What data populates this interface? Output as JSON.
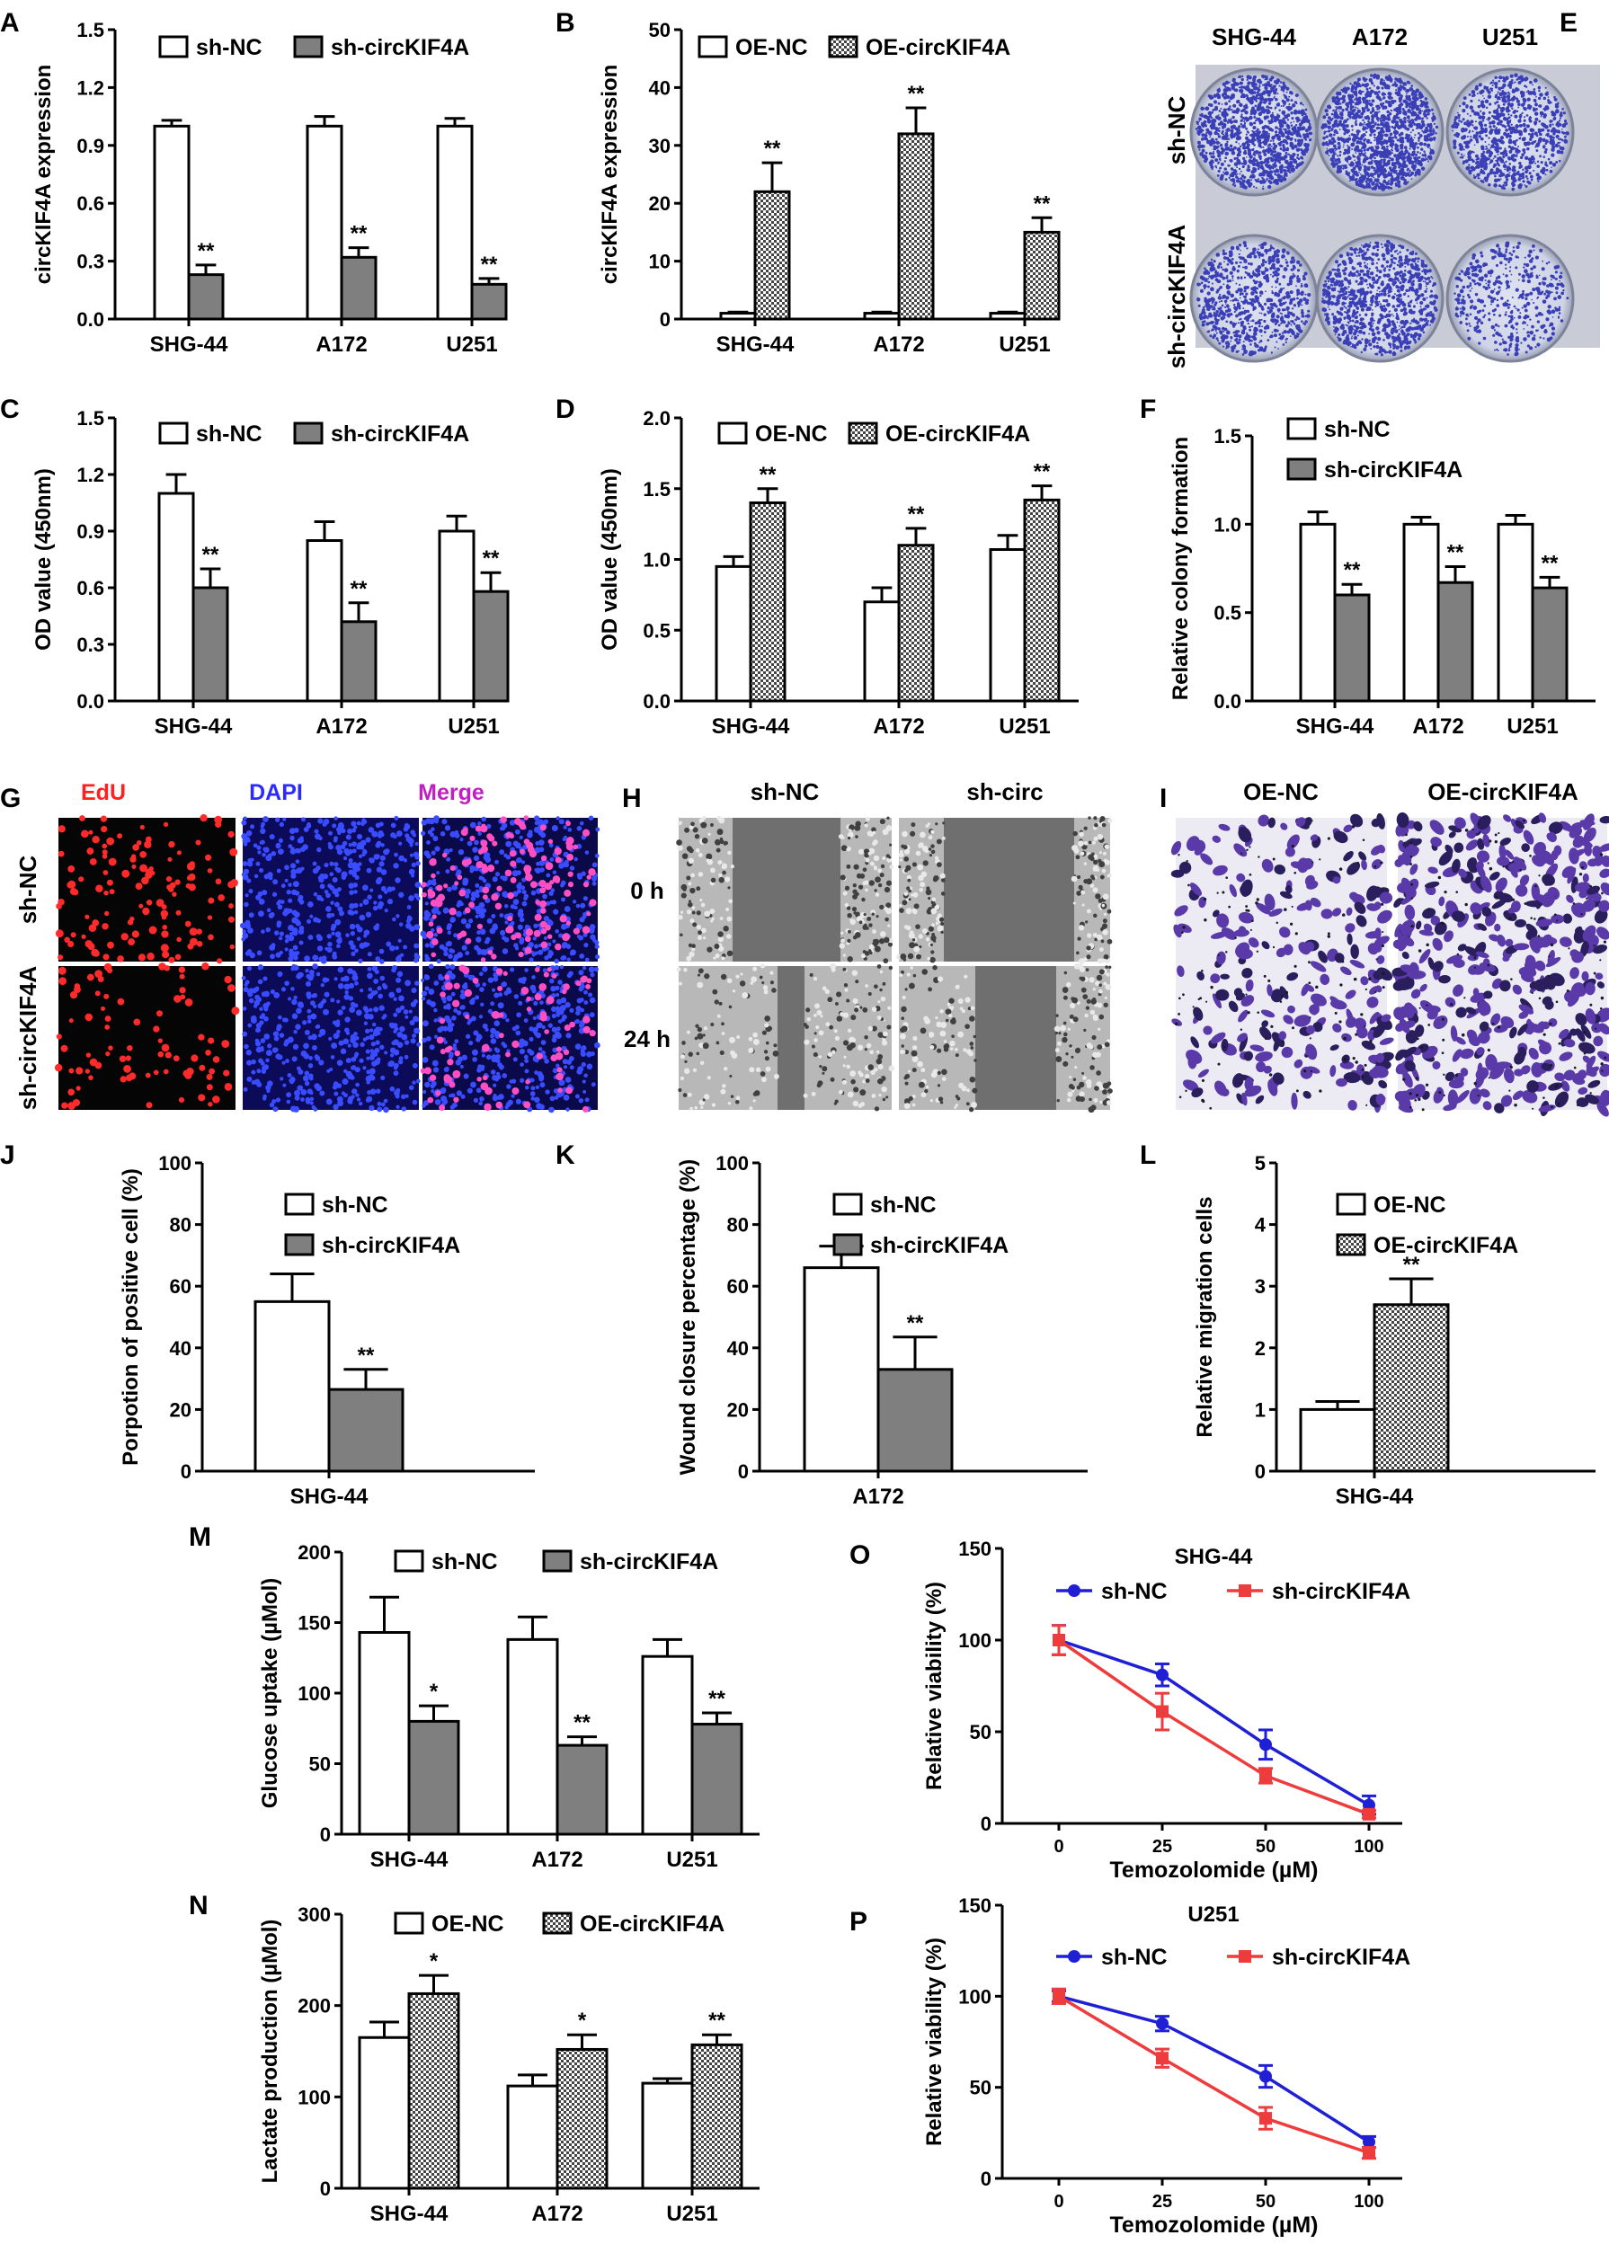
{
  "colors": {
    "bar_white": "#ffffff",
    "bar_grey": "#7f7f7f",
    "line_blue": "#1f1fd6",
    "line_red": "#ee3b3b",
    "edu_red": "#ff2020",
    "dapi_blue": "#2b2bff",
    "merge_magenta": "#c020c0",
    "crystal_violet": "#5a3aa8"
  },
  "chart_data": [
    {
      "panel": "A",
      "type": "bar",
      "ylabel": "circKIF4A expression",
      "ylim": [
        0,
        1.5
      ],
      "yticks": [
        0.0,
        0.3,
        0.6,
        0.9,
        1.2,
        1.5
      ],
      "categories": [
        "SHG-44",
        "A172",
        "U251"
      ],
      "series": [
        {
          "name": "sh-NC",
          "style": "white",
          "values": [
            1.0,
            1.0,
            1.0
          ],
          "errors": [
            0.03,
            0.05,
            0.04
          ],
          "sig": [
            "",
            "",
            ""
          ]
        },
        {
          "name": "sh-circKIF4A",
          "style": "grey",
          "values": [
            0.23,
            0.32,
            0.18
          ],
          "errors": [
            0.05,
            0.05,
            0.03
          ],
          "sig": [
            "**",
            "**",
            "**"
          ]
        }
      ]
    },
    {
      "panel": "B",
      "type": "bar",
      "ylabel": "circKIF4A expression",
      "ylim": [
        0,
        50
      ],
      "yticks": [
        0,
        10,
        20,
        30,
        40,
        50
      ],
      "categories": [
        "SHG-44",
        "A172",
        "U251"
      ],
      "series": [
        {
          "name": "OE-NC",
          "style": "white",
          "values": [
            1.0,
            1.0,
            1.0
          ],
          "errors": [
            0.2,
            0.2,
            0.2
          ],
          "sig": [
            "",
            "",
            ""
          ]
        },
        {
          "name": "OE-circKIF4A",
          "style": "checker",
          "values": [
            22,
            32,
            15
          ],
          "errors": [
            5,
            4.5,
            2.5
          ],
          "sig": [
            "**",
            "**",
            "**"
          ]
        }
      ]
    },
    {
      "panel": "C",
      "type": "bar",
      "ylabel": "OD value (450nm)",
      "ylim": [
        0,
        1.5
      ],
      "yticks": [
        0.0,
        0.3,
        0.6,
        0.9,
        1.2,
        1.5
      ],
      "categories": [
        "SHG-44",
        "A172",
        "U251"
      ],
      "series": [
        {
          "name": "sh-NC",
          "style": "white",
          "values": [
            1.1,
            0.85,
            0.9
          ],
          "errors": [
            0.1,
            0.1,
            0.08
          ],
          "sig": [
            "",
            "",
            ""
          ]
        },
        {
          "name": "sh-circKIF4A",
          "style": "grey",
          "values": [
            0.6,
            0.42,
            0.58
          ],
          "errors": [
            0.1,
            0.1,
            0.1
          ],
          "sig": [
            "**",
            "**",
            "**"
          ]
        }
      ]
    },
    {
      "panel": "D",
      "type": "bar",
      "ylabel": "OD value (450nm)",
      "ylim": [
        0,
        2.0
      ],
      "yticks": [
        0.0,
        0.5,
        1.0,
        1.5,
        2.0
      ],
      "categories": [
        "SHG-44",
        "A172",
        "U251"
      ],
      "series": [
        {
          "name": "OE-NC",
          "style": "white",
          "values": [
            0.95,
            0.7,
            1.07
          ],
          "errors": [
            0.07,
            0.1,
            0.1
          ],
          "sig": [
            "",
            "",
            ""
          ]
        },
        {
          "name": "OE-circKIF4A",
          "style": "checker",
          "values": [
            1.4,
            1.1,
            1.42
          ],
          "errors": [
            0.1,
            0.12,
            0.1
          ],
          "sig": [
            "**",
            "**",
            "**"
          ]
        }
      ]
    },
    {
      "panel": "F",
      "type": "bar",
      "ylabel": "Relative colony formation",
      "ylim": [
        0,
        1.5
      ],
      "yticks": [
        0.0,
        0.5,
        1.0,
        1.5
      ],
      "categories": [
        "SHG-44",
        "A172",
        "U251"
      ],
      "series": [
        {
          "name": "sh-NC",
          "style": "white",
          "values": [
            1.0,
            1.0,
            1.0
          ],
          "errors": [
            0.07,
            0.04,
            0.05
          ],
          "sig": [
            "",
            "",
            ""
          ]
        },
        {
          "name": "sh-circKIF4A",
          "style": "grey",
          "values": [
            0.6,
            0.67,
            0.64
          ],
          "errors": [
            0.06,
            0.09,
            0.06
          ],
          "sig": [
            "**",
            "**",
            "**"
          ]
        }
      ]
    },
    {
      "panel": "J",
      "type": "bar",
      "ylabel": "Porpotion of positive cell (%)",
      "ylim": [
        0,
        100
      ],
      "yticks": [
        0,
        20,
        40,
        60,
        80,
        100
      ],
      "categories": [
        "SHG-44"
      ],
      "series": [
        {
          "name": "sh-NC",
          "style": "white",
          "values": [
            55
          ],
          "errors": [
            9
          ],
          "sig": [
            ""
          ]
        },
        {
          "name": "sh-circKIF4A",
          "style": "grey",
          "values": [
            26.5
          ],
          "errors": [
            6.5
          ],
          "sig": [
            "**"
          ]
        }
      ]
    },
    {
      "panel": "K",
      "type": "bar",
      "ylabel": "Wound closure percentage (%)",
      "ylim": [
        0,
        100
      ],
      "yticks": [
        0,
        20,
        40,
        60,
        80,
        100
      ],
      "categories": [
        "A172"
      ],
      "series": [
        {
          "name": "sh-NC",
          "style": "white",
          "values": [
            66
          ],
          "errors": [
            7
          ],
          "sig": [
            ""
          ]
        },
        {
          "name": "sh-circKIF4A",
          "style": "grey",
          "values": [
            33
          ],
          "errors": [
            10.5
          ],
          "sig": [
            "**"
          ]
        }
      ]
    },
    {
      "panel": "L",
      "type": "bar",
      "ylabel": "Relative migration cells",
      "ylim": [
        0,
        5
      ],
      "yticks": [
        0,
        1,
        2,
        3,
        4,
        5
      ],
      "categories": [
        "SHG-44"
      ],
      "series": [
        {
          "name": "OE-NC",
          "style": "white",
          "values": [
            1.0
          ],
          "errors": [
            0.13
          ],
          "sig": [
            ""
          ]
        },
        {
          "name": "OE-circKIF4A",
          "style": "checker",
          "values": [
            2.7
          ],
          "errors": [
            0.42
          ],
          "sig": [
            "**"
          ]
        }
      ]
    },
    {
      "panel": "M",
      "type": "bar",
      "ylabel": "Glucose uptake (µMol)",
      "ylim": [
        0,
        200
      ],
      "yticks": [
        0,
        50,
        100,
        150,
        200
      ],
      "categories": [
        "SHG-44",
        "A172",
        "U251"
      ],
      "series": [
        {
          "name": "sh-NC",
          "style": "white",
          "values": [
            143,
            138,
            126
          ],
          "errors": [
            25,
            16,
            12
          ],
          "sig": [
            "",
            "",
            ""
          ]
        },
        {
          "name": "sh-circKIF4A",
          "style": "grey",
          "values": [
            80,
            63,
            78
          ],
          "errors": [
            11,
            6,
            8
          ],
          "sig": [
            "*",
            "**",
            "**"
          ]
        }
      ]
    },
    {
      "panel": "N",
      "type": "bar",
      "ylabel": "Lactate production (µMol)",
      "ylim": [
        0,
        300
      ],
      "yticks": [
        0,
        100,
        200,
        300
      ],
      "categories": [
        "SHG-44",
        "A172",
        "U251"
      ],
      "series": [
        {
          "name": "OE-NC",
          "style": "white",
          "values": [
            165,
            112,
            115
          ],
          "errors": [
            17,
            12,
            5
          ],
          "sig": [
            "",
            "",
            ""
          ]
        },
        {
          "name": "OE-circKIF4A",
          "style": "checker",
          "values": [
            213,
            152,
            157
          ],
          "errors": [
            20,
            16,
            11
          ],
          "sig": [
            "*",
            "*",
            "**"
          ]
        }
      ]
    },
    {
      "panel": "O",
      "type": "line",
      "title": "SHG-44",
      "ylabel": "Relative viability (%)",
      "xlabel": "Temozolomide (µM)",
      "ylim": [
        0,
        150
      ],
      "yticks": [
        0,
        50,
        100,
        150
      ],
      "x": [
        "0",
        "25",
        "50",
        "100"
      ],
      "series": [
        {
          "name": "sh-NC",
          "style": "blue",
          "values": [
            100,
            81,
            43,
            10
          ],
          "errors": [
            8,
            6,
            8,
            5
          ]
        },
        {
          "name": "sh-circKIF4A",
          "style": "red",
          "values": [
            100,
            61,
            26,
            5
          ],
          "errors": [
            8,
            10,
            4,
            2
          ]
        }
      ]
    },
    {
      "panel": "P",
      "type": "line",
      "title": "U251",
      "ylabel": "Relative viability (%)",
      "xlabel": "Temozolomide (µM)",
      "ylim": [
        0,
        150
      ],
      "yticks": [
        0,
        50,
        100,
        150
      ],
      "x": [
        "0",
        "25",
        "50",
        "100"
      ],
      "series": [
        {
          "name": "sh-NC",
          "style": "blue",
          "values": [
            100,
            85,
            56,
            20
          ],
          "errors": [
            3,
            4,
            6,
            3
          ]
        },
        {
          "name": "sh-circKIF4A",
          "style": "red",
          "values": [
            100,
            66,
            33,
            14
          ],
          "errors": [
            4,
            5,
            6,
            3
          ]
        }
      ]
    }
  ],
  "images": {
    "E": {
      "letter": "E",
      "columns": [
        "SHG-44",
        "A172",
        "U251"
      ],
      "rows": [
        "sh-NC",
        "sh-circKIF4A"
      ]
    },
    "G": {
      "letter": "G",
      "columns": [
        "EdU",
        "DAPI",
        "Merge"
      ],
      "rows": [
        "sh-NC",
        "sh-circKIF4A"
      ]
    },
    "H": {
      "letter": "H",
      "columns": [
        "sh-NC",
        "sh-circ"
      ],
      "rows": [
        "0 h",
        "24 h"
      ]
    },
    "I": {
      "letter": "I",
      "columns": [
        "OE-NC",
        "OE-circKIF4A"
      ]
    }
  }
}
